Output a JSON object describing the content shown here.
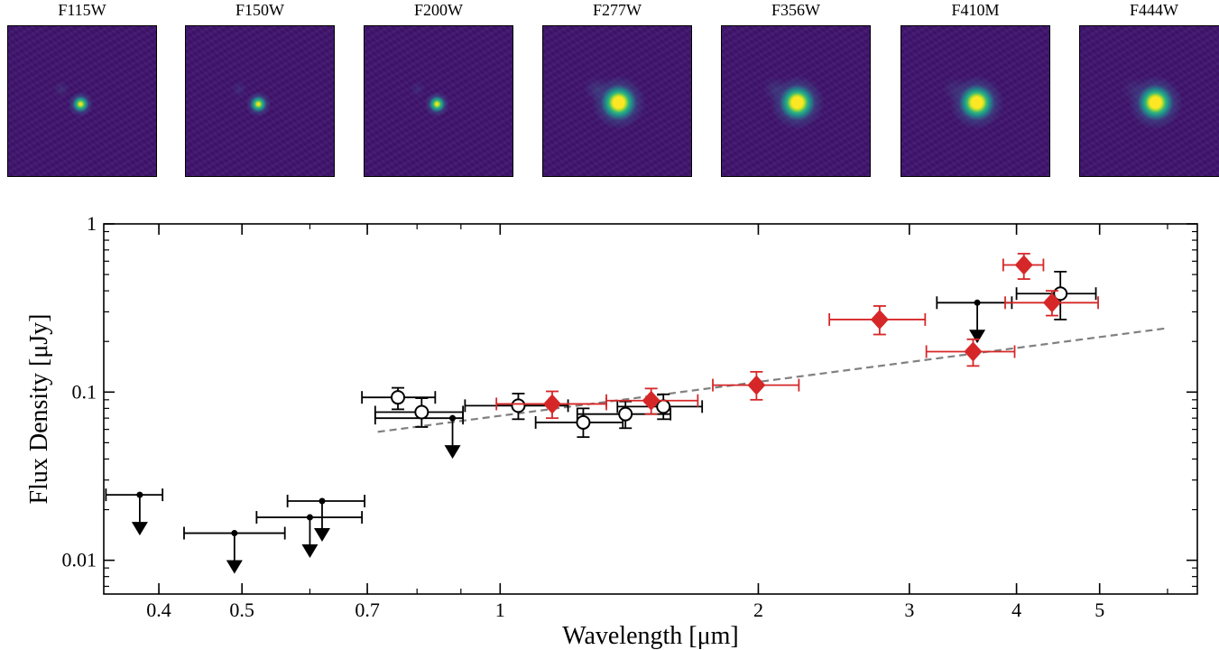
{
  "cutouts": [
    {
      "band": "F115W",
      "source": 1.0,
      "neighbor": 0.25,
      "blur": "sharp"
    },
    {
      "band": "F150W",
      "source": 1.0,
      "neighbor": 0.22,
      "blur": "sharp"
    },
    {
      "band": "F200W",
      "source": 1.0,
      "neighbor": 0.2,
      "blur": "sharp"
    },
    {
      "band": "F277W",
      "source": 1.0,
      "neighbor": 0.35,
      "blur": "soft"
    },
    {
      "band": "F356W",
      "source": 1.0,
      "neighbor": 0.3,
      "blur": "soft"
    },
    {
      "band": "F410M",
      "source": 1.0,
      "neighbor": 0.25,
      "blur": "soft"
    },
    {
      "band": "F444W",
      "source": 1.0,
      "neighbor": 0.22,
      "blur": "soft"
    }
  ],
  "colors": {
    "cutout_bg": "#45156f",
    "hst": "#000000",
    "jwst": "#d62728",
    "fit": "#808080"
  },
  "chart_data": {
    "type": "scatter",
    "xlabel": "Wavelength [μm]",
    "ylabel": "Flux Density [μJy]",
    "xscale": "log",
    "yscale": "log",
    "xlim": [
      0.345,
      6.5
    ],
    "ylim": [
      0.0063,
      1.0
    ],
    "xticks": [
      0.4,
      0.5,
      0.7,
      1,
      2,
      3,
      4,
      5
    ],
    "xtick_labels": [
      "0.4",
      "0.5",
      "0.7",
      "1",
      "2",
      "3",
      "4",
      "5"
    ],
    "yticks": [
      0.01,
      0.1,
      1
    ],
    "ytick_labels": [
      "0.01",
      "0.1",
      "1"
    ],
    "series": [
      {
        "marker": "upper-limit",
        "color": "#000000",
        "points": [
          {
            "x": 0.38,
            "y": 0.0245,
            "xlo": 0.347,
            "xhi": 0.404
          },
          {
            "x": 0.49,
            "y": 0.0145,
            "xlo": 0.428,
            "xhi": 0.561
          },
          {
            "x": 0.6,
            "y": 0.018,
            "xlo": 0.52,
            "xhi": 0.69
          },
          {
            "x": 0.62,
            "y": 0.0225,
            "xlo": 0.565,
            "xhi": 0.695
          },
          {
            "x": 0.88,
            "y": 0.07,
            "xlo": 0.715,
            "xhi": 0.905
          },
          {
            "x": 3.6,
            "y": 0.34,
            "xlo": 3.23,
            "xhi": 3.95
          }
        ]
      },
      {
        "marker": "open-circle",
        "color": "#000000",
        "points": [
          {
            "x": 0.76,
            "y": 0.093,
            "xlo": 0.69,
            "xhi": 0.84,
            "ylo": 0.079,
            "yhi": 0.106
          },
          {
            "x": 0.81,
            "y": 0.076,
            "xlo": 0.715,
            "xhi": 0.905,
            "ylo": 0.062,
            "yhi": 0.092
          },
          {
            "x": 1.05,
            "y": 0.083,
            "xlo": 0.91,
            "xhi": 1.2,
            "ylo": 0.069,
            "yhi": 0.098
          },
          {
            "x": 1.25,
            "y": 0.066,
            "xlo": 1.1,
            "xhi": 1.39,
            "ylo": 0.054,
            "yhi": 0.08
          },
          {
            "x": 1.4,
            "y": 0.074,
            "xlo": 1.23,
            "xhi": 1.58,
            "ylo": 0.061,
            "yhi": 0.088
          },
          {
            "x": 1.55,
            "y": 0.082,
            "xlo": 1.37,
            "xhi": 1.72,
            "ylo": 0.069,
            "yhi": 0.097
          },
          {
            "x": 4.5,
            "y": 0.385,
            "xlo": 4.0,
            "xhi": 4.95,
            "ylo": 0.27,
            "yhi": 0.52
          }
        ]
      },
      {
        "marker": "diamond",
        "color": "#d62728",
        "points": [
          {
            "x": 1.15,
            "y": 0.085,
            "xlo": 0.99,
            "xhi": 1.33,
            "ylo": 0.07,
            "yhi": 0.101
          },
          {
            "x": 1.5,
            "y": 0.089,
            "xlo": 1.33,
            "xhi": 1.7,
            "ylo": 0.074,
            "yhi": 0.105
          },
          {
            "x": 1.99,
            "y": 0.11,
            "xlo": 1.77,
            "xhi": 2.23,
            "ylo": 0.09,
            "yhi": 0.132
          },
          {
            "x": 2.77,
            "y": 0.27,
            "xlo": 2.42,
            "xhi": 3.13,
            "ylo": 0.22,
            "yhi": 0.325
          },
          {
            "x": 3.56,
            "y": 0.174,
            "xlo": 3.14,
            "xhi": 3.98,
            "ylo": 0.143,
            "yhi": 0.206
          },
          {
            "x": 4.08,
            "y": 0.57,
            "xlo": 3.86,
            "xhi": 4.3,
            "ylo": 0.47,
            "yhi": 0.665
          },
          {
            "x": 4.4,
            "y": 0.34,
            "xlo": 3.88,
            "xhi": 4.98,
            "ylo": 0.285,
            "yhi": 0.4
          }
        ]
      },
      {
        "marker": "dashed-line",
        "color": "#808080",
        "points": [
          {
            "x": 0.72,
            "y": 0.058
          },
          {
            "x": 6.0,
            "y": 0.24
          }
        ]
      }
    ]
  }
}
